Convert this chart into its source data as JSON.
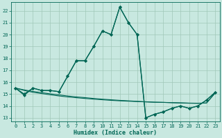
{
  "xlabel": "Humidex (Indice chaleur)",
  "xlim": [
    -0.5,
    23.5
  ],
  "ylim": [
    12.7,
    22.7
  ],
  "yticks": [
    13,
    14,
    15,
    16,
    17,
    18,
    19,
    20,
    21,
    22
  ],
  "xticks": [
    0,
    1,
    2,
    3,
    4,
    5,
    6,
    7,
    8,
    9,
    10,
    11,
    12,
    13,
    14,
    15,
    16,
    17,
    18,
    19,
    20,
    21,
    22,
    23
  ],
  "bg_color": "#c8e8e0",
  "grid_color": "#a0c8b8",
  "line_color": "#006655",
  "curve_main_x": [
    0,
    1,
    2,
    3,
    4,
    5,
    6,
    7,
    8,
    9,
    10,
    11,
    12,
    13,
    14,
    15,
    16,
    17,
    18,
    19,
    20,
    21,
    22,
    23
  ],
  "curve_main_y": [
    15.5,
    14.9,
    15.5,
    15.3,
    15.3,
    15.2,
    16.5,
    17.8,
    17.8,
    19.0,
    20.3,
    20.0,
    22.3,
    21.0,
    20.0,
    13.0,
    13.3,
    13.5,
    13.8,
    14.0,
    13.8,
    14.0,
    14.5,
    15.15
  ],
  "curve2_x": [
    0,
    1,
    2,
    3,
    4,
    5,
    6,
    7,
    8,
    9,
    10,
    11,
    12,
    13,
    14,
    15,
    16,
    17,
    18,
    19,
    20,
    21,
    22,
    23
  ],
  "curve2_y": [
    15.5,
    15.0,
    15.5,
    15.3,
    15.3,
    15.2,
    16.5,
    17.8,
    17.8,
    19.0,
    20.3,
    20.0,
    22.3,
    21.0,
    20.0,
    13.0,
    13.3,
    13.5,
    13.8,
    14.0,
    13.8,
    14.0,
    14.5,
    15.15
  ],
  "flat1_x": [
    0,
    1,
    2,
    3,
    4,
    5,
    6,
    7,
    8,
    9,
    10,
    11,
    12,
    13,
    14,
    15,
    16,
    17,
    18,
    19,
    20,
    21,
    22,
    23
  ],
  "flat1_y": [
    15.5,
    15.35,
    15.22,
    15.12,
    15.02,
    14.93,
    14.84,
    14.76,
    14.7,
    14.63,
    14.57,
    14.52,
    14.47,
    14.43,
    14.39,
    14.35,
    14.32,
    14.3,
    14.28,
    14.26,
    14.24,
    14.23,
    14.25,
    15.1
  ],
  "flat2_x": [
    0,
    1,
    2,
    3,
    4,
    5,
    6,
    7,
    8,
    9,
    10,
    11,
    12,
    13,
    14,
    15,
    16,
    17,
    18,
    19,
    20,
    21,
    22,
    23
  ],
  "flat2_y": [
    15.5,
    15.3,
    15.15,
    15.04,
    14.94,
    14.84,
    14.76,
    14.69,
    14.63,
    14.57,
    14.52,
    14.47,
    14.43,
    14.4,
    14.37,
    14.34,
    14.31,
    14.3,
    14.27,
    14.25,
    14.23,
    14.22,
    14.25,
    15.1
  ]
}
